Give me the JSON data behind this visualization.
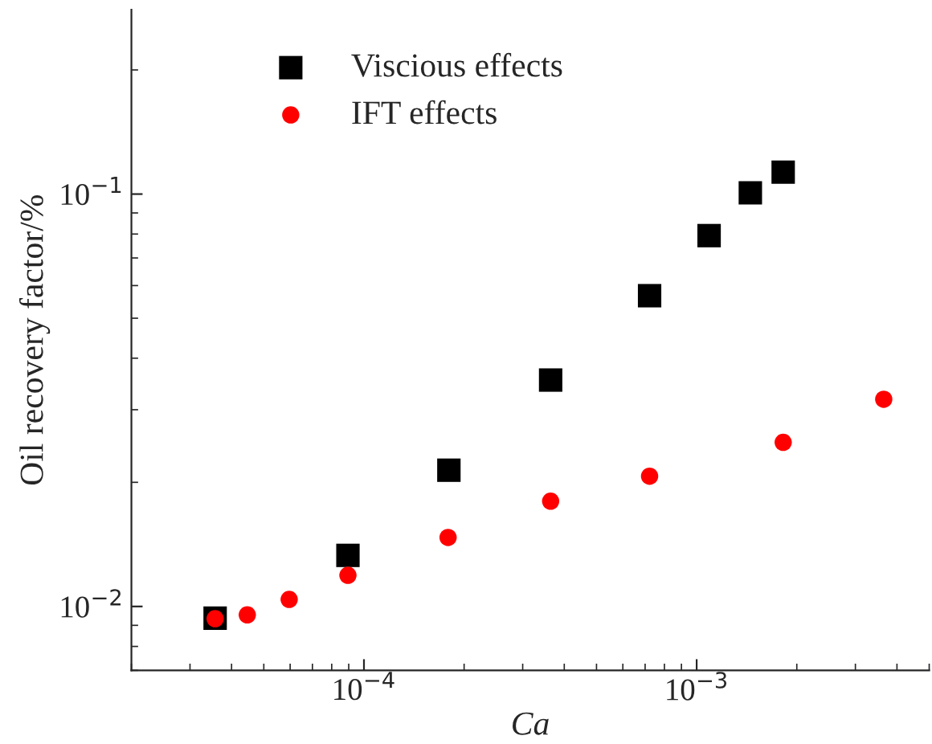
{
  "chart_data": {
    "type": "scatter",
    "xlabel": "Ca",
    "ylabel": "Oil recovery factor/%",
    "log": "xy",
    "grid": false,
    "legend": "top left",
    "xlim": [
      2e-05,
      0.005
    ],
    "ylim": [
      0.007,
      0.28
    ],
    "xticks": [
      {
        "value": 0.0001,
        "label": "10$^{−4}$"
      },
      {
        "value": 0.001,
        "label": "10$^{−3}$"
      }
    ],
    "yticks": [
      {
        "value": 0.01,
        "label": "10$^{−2}$"
      },
      {
        "value": 0.1,
        "label": "10$^{−1}$"
      }
    ],
    "series": [
      {
        "name": "Viscious effects",
        "color": "#000000",
        "marker": "square",
        "x": [
          3.57e-05,
          8.95e-05,
          0.00018,
          0.000364,
          0.000722,
          0.00109,
          0.00145,
          0.00182
        ],
        "values": [
          0.00937,
          0.0133,
          0.0214,
          0.0354,
          0.0567,
          0.0793,
          0.1007,
          0.113
        ]
      },
      {
        "name": "IFT effects",
        "color": "#ff0000",
        "marker": "circle",
        "x": [
          3.57e-05,
          4.46e-05,
          5.96e-05,
          8.95e-05,
          0.000179,
          0.000364,
          0.000722,
          0.00182,
          0.00365
        ],
        "values": [
          0.00934,
          0.00954,
          0.0104,
          0.0119,
          0.0147,
          0.018,
          0.0207,
          0.025,
          0.0318
        ]
      }
    ]
  }
}
